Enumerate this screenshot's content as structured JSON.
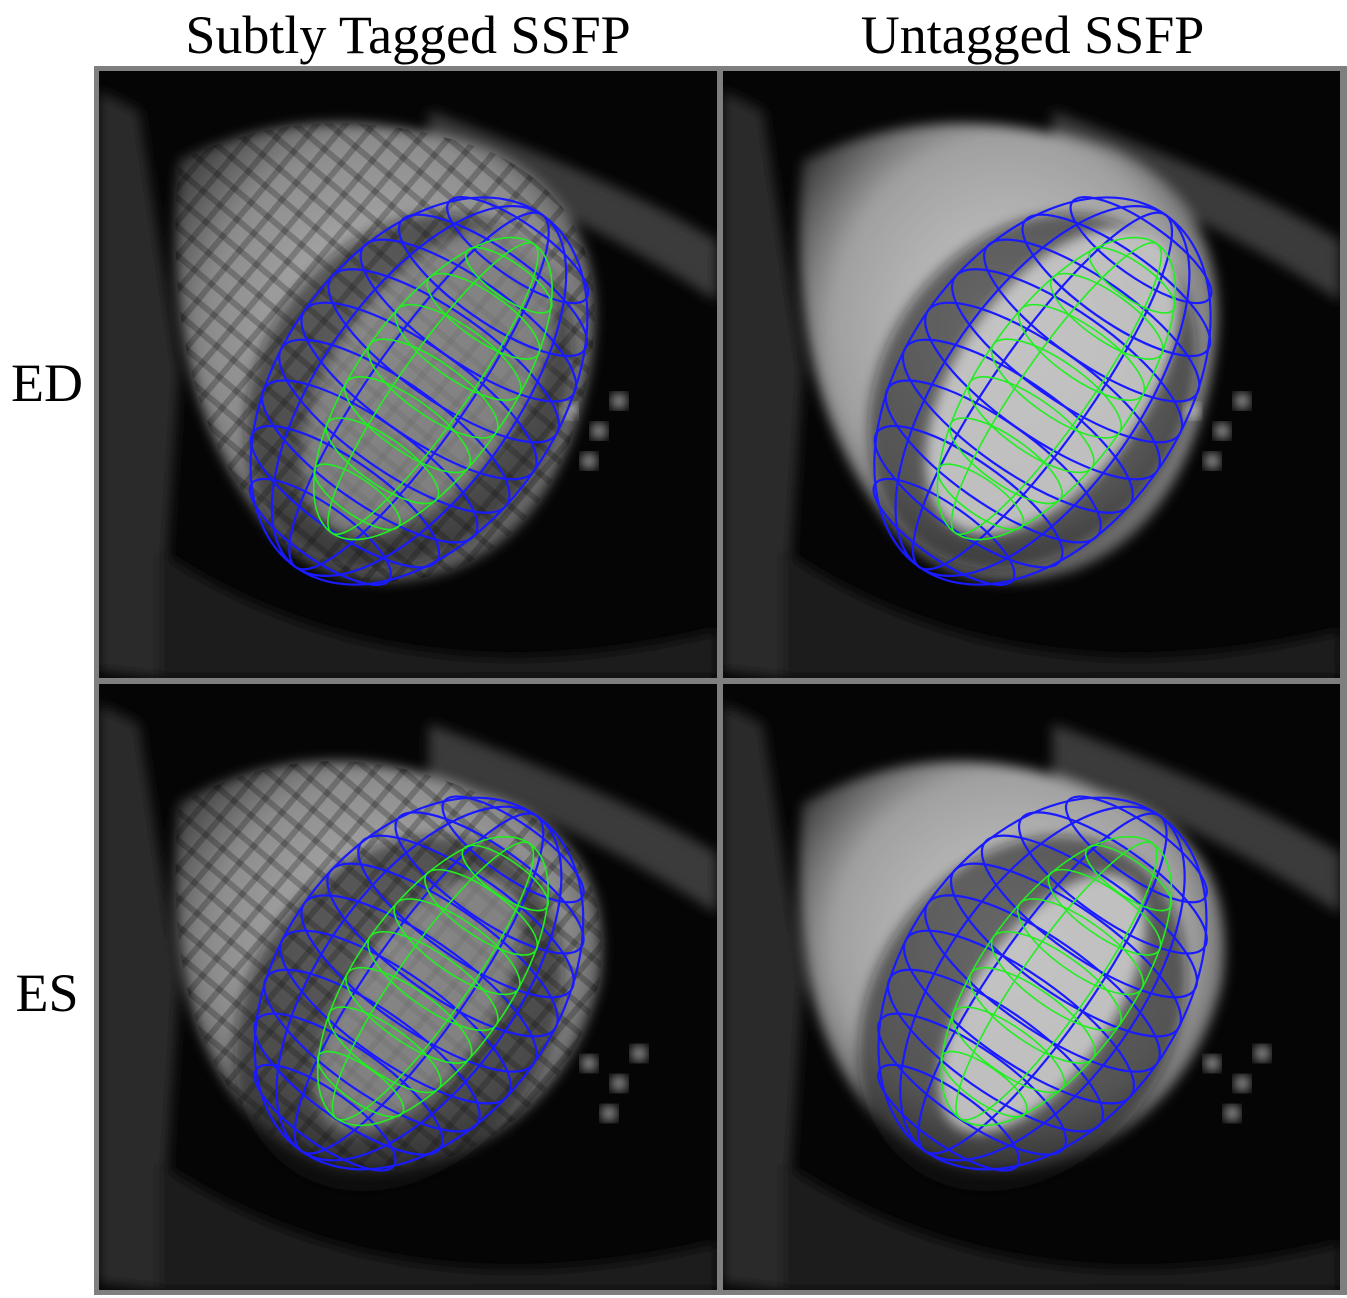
{
  "columns": {
    "left_title": "Subtly Tagged SSFP",
    "right_title": "Untagged SSFP"
  },
  "rows": {
    "top_label": "ED",
    "bottom_label": "ES"
  },
  "colors": {
    "frame": "#7f7f7f",
    "wireframe_outer": "#1a1aff",
    "wireframe_inner": "#22ee22"
  },
  "panels": [
    {
      "name": "ed-subtly-tagged",
      "phase": "ED",
      "image": "Subtly Tagged SSFP",
      "tagged": true
    },
    {
      "name": "ed-untagged",
      "phase": "ED",
      "image": "Untagged SSFP",
      "tagged": false
    },
    {
      "name": "es-subtly-tagged",
      "phase": "ES",
      "image": "Subtly Tagged SSFP",
      "tagged": true
    },
    {
      "name": "es-untagged",
      "phase": "ES",
      "image": "Untagged SSFP",
      "tagged": false
    }
  ]
}
